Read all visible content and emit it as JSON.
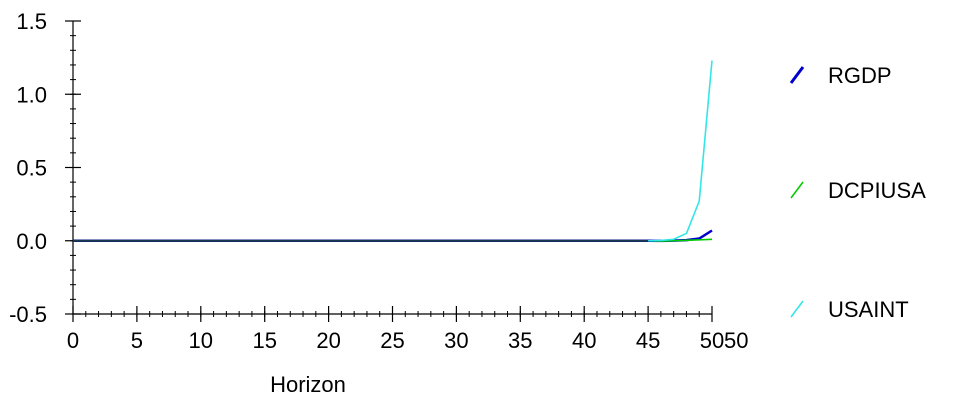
{
  "chart_data": {
    "type": "line",
    "title": "",
    "xlabel": "Horizon",
    "ylabel": "",
    "xlim": [
      0,
      50
    ],
    "ylim": [
      -0.5,
      1.5
    ],
    "x_ticks": [
      "0",
      "5",
      "10",
      "15",
      "20",
      "25",
      "30",
      "35",
      "40",
      "45",
      "50"
    ],
    "x_extra_tick_label": "50",
    "y_ticks": [
      "-0.5",
      "0.0",
      "0.5",
      "1.0",
      "1.5"
    ],
    "x_minor_step": 1,
    "y_minor_step": 0.1,
    "grid": false,
    "legend_position": "right",
    "series": [
      {
        "name": "RGDP",
        "color": "#0000cc",
        "points": [
          [
            0,
            0
          ],
          [
            45,
            0
          ],
          [
            46,
            -0.001
          ],
          [
            47,
            0.001
          ],
          [
            48,
            0.004
          ],
          [
            49,
            0.015
          ],
          [
            50,
            0.07
          ]
        ]
      },
      {
        "name": "DCPIUSA",
        "color": "#00cc00",
        "points": [
          [
            0,
            0
          ],
          [
            45,
            0
          ],
          [
            46,
            -0.002
          ],
          [
            47,
            0
          ],
          [
            48,
            0.003
          ],
          [
            49,
            0.006
          ],
          [
            50,
            0.01
          ]
        ]
      },
      {
        "name": "USAINT",
        "color": "#33e6e6",
        "points": [
          [
            0,
            0
          ],
          [
            45,
            0
          ],
          [
            46,
            0.002
          ],
          [
            47,
            0.01
          ],
          [
            48,
            0.05
          ],
          [
            49,
            0.27
          ],
          [
            50,
            1.23
          ]
        ]
      }
    ]
  }
}
